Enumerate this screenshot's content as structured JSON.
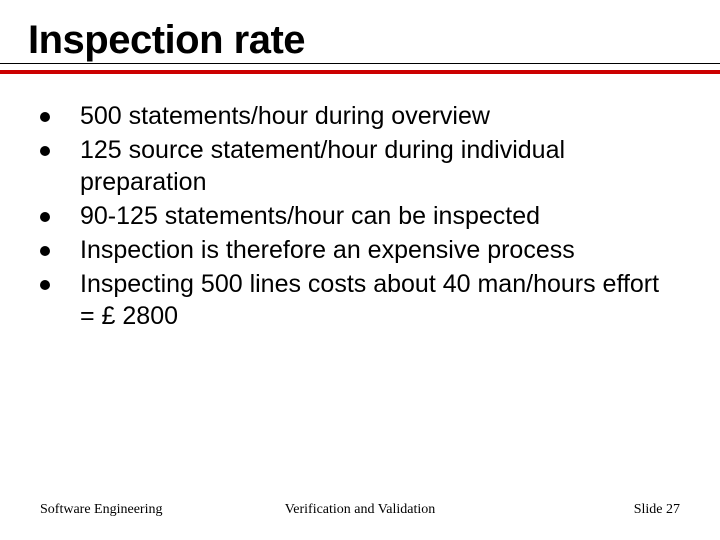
{
  "slide": {
    "title": "Inspection rate",
    "accent_color": "#cc0000",
    "bullets": [
      "500 statements/hour during overview",
      "125 source statement/hour during individual preparation",
      "90-125 statements/hour can be inspected",
      "Inspection is therefore an expensive process",
      "Inspecting 500 lines costs about 40 man/hours effort = £ 2800"
    ],
    "title_fontsize": 40,
    "body_fontsize": 25
  },
  "footer": {
    "left": "Software Engineering",
    "center": "Verification and Validation",
    "right_prefix": "Slide ",
    "slide_number": "27"
  }
}
